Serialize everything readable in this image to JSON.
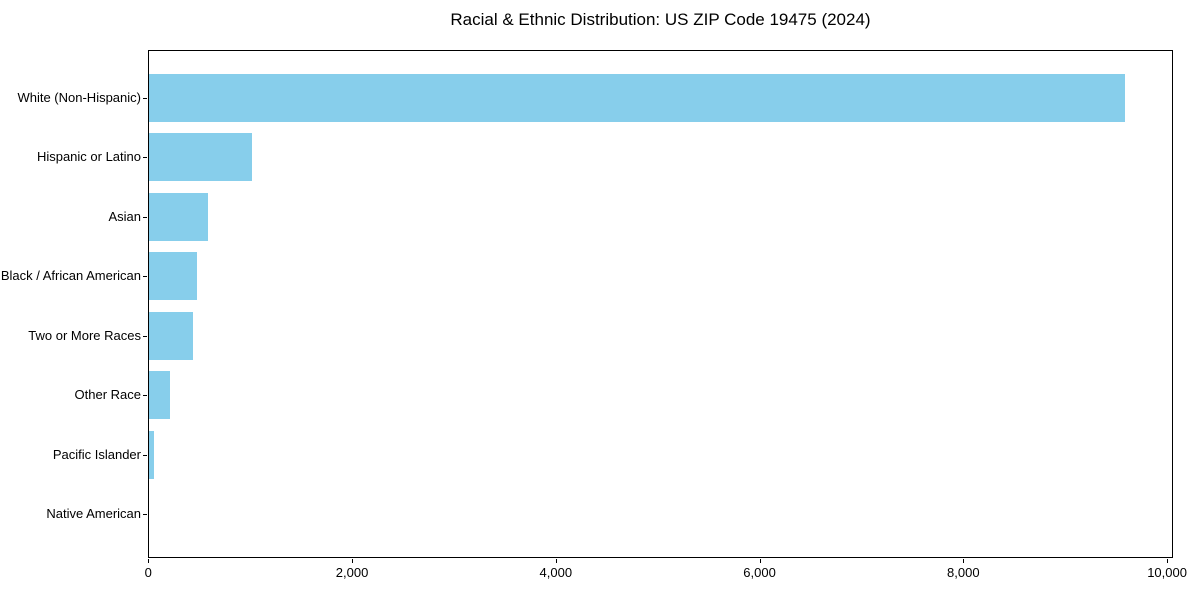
{
  "title": "Racial & Ethnic Distribution: US ZIP Code 19475 (2024)",
  "chart_data": {
    "type": "bar",
    "orientation": "horizontal",
    "title": "Racial & Ethnic Distribution: US ZIP Code 19475 (2024)",
    "xlabel": "",
    "ylabel": "",
    "categories": [
      "White (Non-Hispanic)",
      "Hispanic or Latino",
      "Asian",
      "Black / African American",
      "Two or More Races",
      "Other Race",
      "Pacific Islander",
      "Native American"
    ],
    "values": [
      9575,
      1015,
      580,
      470,
      435,
      205,
      50,
      0
    ],
    "xlim": [
      0,
      10050
    ],
    "xticks": [
      {
        "value": 0,
        "label": "0"
      },
      {
        "value": 2000,
        "label": "2,000"
      },
      {
        "value": 4000,
        "label": "4,000"
      },
      {
        "value": 6000,
        "label": "6,000"
      },
      {
        "value": 8000,
        "label": "8,000"
      },
      {
        "value": 10000,
        "label": "10,000"
      }
    ],
    "grid": false,
    "legend": "none",
    "bar_color": "#87CEEB",
    "spine_color": "#000000",
    "text_color": "#000000",
    "background_color": "#ffffff"
  }
}
